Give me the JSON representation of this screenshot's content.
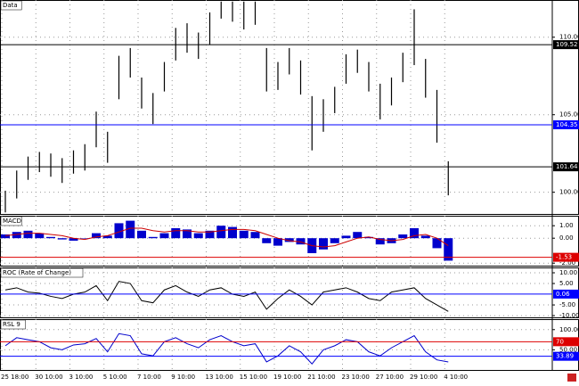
{
  "chart_data": [
    {
      "type": "hilo",
      "title": "Data",
      "color": "#000000",
      "high": [
        100.1,
        101.4,
        102.3,
        102.6,
        102.5,
        102.2,
        102.7,
        103.1,
        105.2,
        103.9,
        108.8,
        109.3,
        107.4,
        106.4,
        108.4,
        110.6,
        110.9,
        110.3,
        111.6,
        112.3,
        112.3,
        112.3,
        112.3,
        109.3,
        108.4,
        109.3,
        108.5,
        106.2,
        106.0,
        106.8,
        108.9,
        109.2,
        108.4,
        107.0,
        107.4,
        109.0,
        111.8,
        108.6,
        106.6,
        102.0
      ],
      "low": [
        98.7,
        99.6,
        100.8,
        101.3,
        101.0,
        100.6,
        101.2,
        101.4,
        102.9,
        101.9,
        106.0,
        107.4,
        105.4,
        104.4,
        106.5,
        108.5,
        109.0,
        108.6,
        109.5,
        111.2,
        111.0,
        110.5,
        110.8,
        106.5,
        106.6,
        107.6,
        106.3,
        102.7,
        103.9,
        105.1,
        107.0,
        107.7,
        106.5,
        104.7,
        105.6,
        107.1,
        108.2,
        106.1,
        103.2,
        99.8
      ],
      "ylim": [
        98.6,
        112.4
      ],
      "yticks": [
        {
          "value": 110,
          "label": "110.00"
        },
        {
          "value": 105,
          "label": "105.00"
        },
        {
          "value": 100,
          "label": "100.00"
        }
      ],
      "lines": [
        {
          "value": 109.52,
          "color": "#000000"
        },
        {
          "value": 104.35,
          "color": "#0000ff"
        },
        {
          "value": 101.64,
          "color": "#000000"
        }
      ]
    },
    {
      "type": "macd",
      "title": "MACD",
      "series": [
        {
          "style": "bar",
          "color": "#0000cc",
          "values": [
            0.3,
            0.5,
            0.6,
            0.4,
            0.1,
            -0.1,
            -0.2,
            0.0,
            0.4,
            0.2,
            1.2,
            1.4,
            0.6,
            0.1,
            0.4,
            0.8,
            0.7,
            0.4,
            0.6,
            1.0,
            0.9,
            0.6,
            0.5,
            -0.4,
            -0.6,
            -0.3,
            -0.5,
            -1.2,
            -0.9,
            -0.4,
            0.2,
            0.5,
            0.1,
            -0.5,
            -0.4,
            0.3,
            0.8,
            0.2,
            -0.8,
            -1.8
          ]
        },
        {
          "style": "line",
          "color": "#cc0000",
          "values": [
            0.2,
            0.3,
            0.4,
            0.4,
            0.3,
            0.2,
            0.0,
            -0.1,
            0.1,
            0.2,
            0.5,
            0.8,
            0.8,
            0.6,
            0.5,
            0.6,
            0.6,
            0.5,
            0.5,
            0.6,
            0.7,
            0.7,
            0.6,
            0.3,
            0.0,
            -0.2,
            -0.3,
            -0.6,
            -0.7,
            -0.6,
            -0.3,
            0.0,
            0.1,
            -0.1,
            -0.2,
            -0.1,
            0.2,
            0.3,
            0.0,
            -0.6
          ]
        }
      ],
      "ylim": [
        -2.2,
        1.8
      ],
      "yticks": [
        {
          "value": 1,
          "label": "1.00"
        },
        {
          "value": 0,
          "label": "0.00"
        },
        {
          "value": -2,
          "label": "-2.00"
        }
      ],
      "lines": [
        {
          "value": -1.53,
          "color": "#dd0000"
        }
      ]
    },
    {
      "type": "roc",
      "title": "ROC (Rate of Change)",
      "series": [
        {
          "style": "line",
          "color": "#000000",
          "values": [
            2,
            3,
            1,
            0.5,
            -1,
            -2,
            0,
            1,
            4,
            -3,
            6,
            5,
            -3,
            -4,
            2,
            4,
            1,
            -1,
            2,
            3,
            0,
            -1,
            1,
            -7,
            -2,
            2,
            -1,
            -5,
            1,
            2,
            3,
            1,
            -2,
            -3,
            1,
            2,
            3,
            -2,
            -5,
            -8
          ]
        }
      ],
      "ylim": [
        -10.8,
        12.5
      ],
      "yticks": [
        {
          "value": 10,
          "label": "10.00"
        },
        {
          "value": 5,
          "label": "5.00"
        },
        {
          "value": -5,
          "label": "-5.00"
        },
        {
          "value": -10,
          "label": "-10.00"
        }
      ],
      "lines": [
        {
          "value": 0.06,
          "color": "#0000ff"
        }
      ]
    },
    {
      "type": "rsl",
      "title": "RSL 9",
      "series": [
        {
          "style": "line",
          "color": "#0000cc",
          "values": [
            60,
            80,
            75,
            70,
            55,
            50,
            62,
            65,
            78,
            45,
            90,
            85,
            40,
            35,
            70,
            80,
            65,
            55,
            75,
            85,
            70,
            60,
            65,
            20,
            35,
            60,
            45,
            15,
            50,
            60,
            75,
            70,
            45,
            35,
            55,
            70,
            85,
            45,
            25,
            20
          ]
        }
      ],
      "ylim": [
        0,
        126
      ],
      "yticks": [
        {
          "value": 100,
          "label": "100.00"
        },
        {
          "value": 50,
          "label": "50.00"
        }
      ],
      "lines": [
        {
          "value": 70,
          "color": "#dd0000"
        },
        {
          "value": 33.89,
          "color": "#0000ff"
        }
      ],
      "categories": [
        "25 18:00",
        null,
        null,
        "30 10:00",
        null,
        null,
        "3 10:00",
        null,
        null,
        "5 10:00",
        null,
        null,
        "7 10:00",
        null,
        null,
        "9 10:00",
        null,
        null,
        "13 10:00",
        null,
        null,
        "15 10:00",
        null,
        null,
        "19 10:00",
        null,
        null,
        "21 10:00",
        null,
        null,
        "23 10:00",
        null,
        null,
        "27 10:00",
        null,
        null,
        "29 10:00",
        null,
        null,
        "4 10:00"
      ]
    }
  ]
}
